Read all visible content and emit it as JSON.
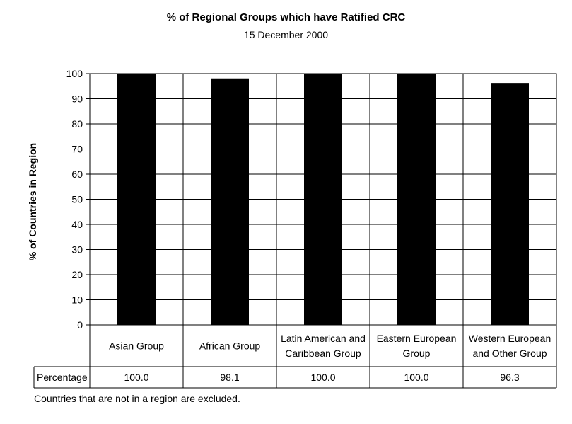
{
  "chart_data": {
    "type": "bar",
    "title": "% of Regional Groups which have Ratified CRC",
    "subtitle": "15 December 2000",
    "ylabel": "% of Countries in Region",
    "categories": [
      [
        "Asian Group"
      ],
      [
        "African Group"
      ],
      [
        "Latin American and",
        "Caribbean Group"
      ],
      [
        "Eastern European",
        "Group"
      ],
      [
        "Western European",
        "and Other Group"
      ]
    ],
    "series": [
      {
        "name": "Percentage",
        "values": [
          100.0,
          98.1,
          100.0,
          100.0,
          96.3
        ]
      }
    ],
    "data_table": {
      "row_label": "Percentage",
      "values": [
        "100.0",
        "98.1",
        "100.0",
        "100.0",
        "96.3"
      ]
    },
    "ylim": [
      0,
      100
    ],
    "yticks": [
      0,
      10,
      20,
      30,
      40,
      50,
      60,
      70,
      80,
      90,
      100
    ],
    "grid": true,
    "bar_color": "#000000",
    "footnote": "Countries that are not in a region are excluded."
  }
}
